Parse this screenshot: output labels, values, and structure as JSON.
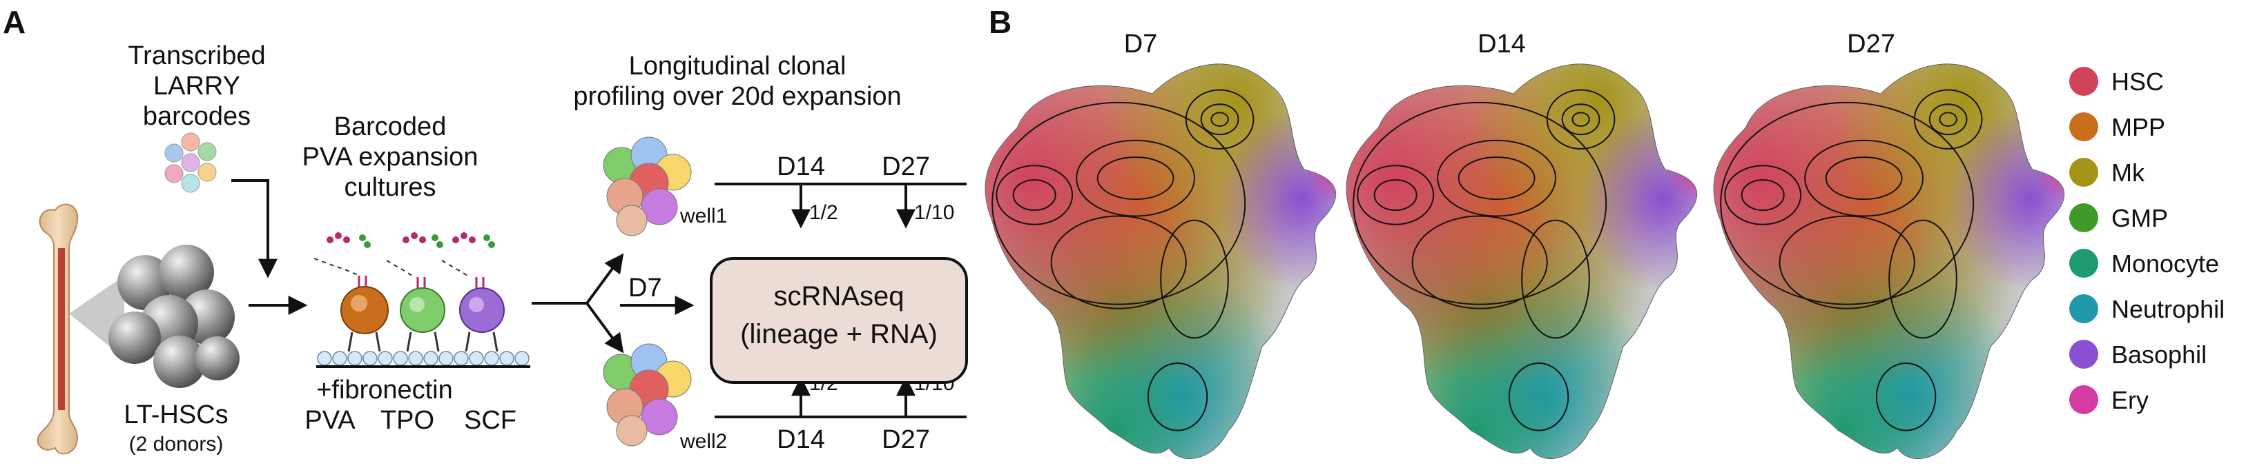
{
  "panelA": {
    "label": "A",
    "larry": {
      "line1": "Transcribed",
      "line2": "LARRY",
      "line3": "barcodes"
    },
    "pva": {
      "line1": "Barcoded",
      "line2": "PVA expansion",
      "line3": "cultures"
    },
    "hsc": {
      "line1": "LT-HSCs",
      "line2": "(2 donors)"
    },
    "fibronectin": "+fibronectin",
    "factors": [
      "PVA",
      "TPO",
      "SCF"
    ],
    "longitudinal": {
      "line1": "Longitudinal clonal",
      "line2": "profiling over 20d expansion"
    },
    "well1": "well1",
    "well2": "well2",
    "d7": "D7",
    "d14_top": "D14",
    "d27_top": "D27",
    "d14_bottom": "D14",
    "d27_bottom": "D27",
    "fraction_half_top": "1/2",
    "fraction_tenth_top": "1/10",
    "fraction_half_bottom": "1/2",
    "fraction_tenth_bottom": "1/10",
    "scrnaseq": {
      "line1": "scRNAseq",
      "line2": "(lineage + RNA)"
    }
  },
  "panelB": {
    "label": "B",
    "titles": [
      "D7",
      "D14",
      "D27"
    ],
    "legend": [
      {
        "label": "HSC",
        "color": "#d1435b"
      },
      {
        "label": "MPP",
        "color": "#c96f1c"
      },
      {
        "label": "Mk",
        "color": "#a39418"
      },
      {
        "label": "GMP",
        "color": "#3f9a2a"
      },
      {
        "label": "Monocyte",
        "color": "#1f9a72"
      },
      {
        "label": "Neutrophil",
        "color": "#1f98aa"
      },
      {
        "label": "Basophil",
        "color": "#8b4fd3"
      },
      {
        "label": "Ery",
        "color": "#d43ca3"
      }
    ]
  }
}
